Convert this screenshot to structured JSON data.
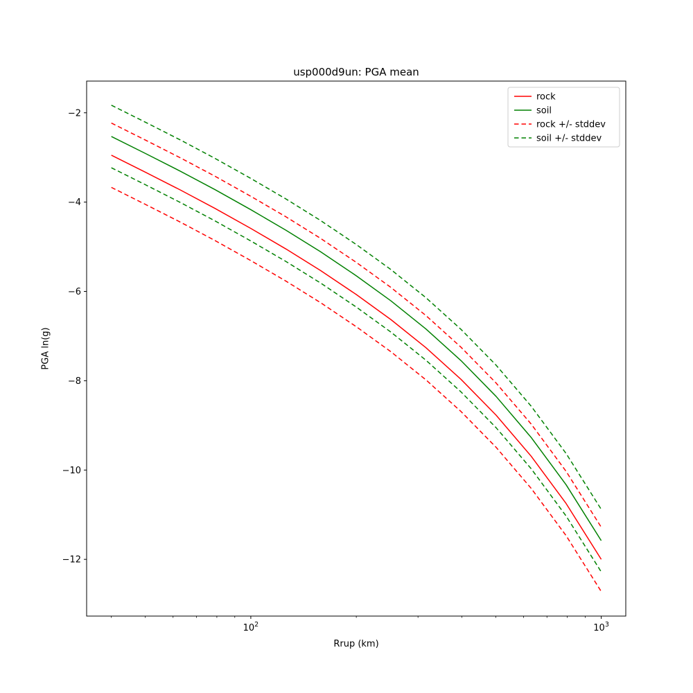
{
  "chart_data": {
    "type": "line",
    "title": "usp000d9un: PGA mean",
    "xlabel": "Rrup (km)",
    "ylabel": "PGA ln(g)",
    "x_scale": "log",
    "grid": false,
    "legend_position": "upper right",
    "xlim": [
      34,
      1175
    ],
    "ylim": [
      -13.27,
      -1.29
    ],
    "y_ticks": [
      -2,
      -4,
      -6,
      -8,
      -10,
      -12
    ],
    "y_tick_labels": [
      "−2",
      "−4",
      "−6",
      "−8",
      "−10",
      "−12"
    ],
    "x_ticks_major": [
      {
        "value": 100,
        "base": "10",
        "exp": "2"
      },
      {
        "value": 1000,
        "base": "10",
        "exp": "3"
      }
    ],
    "x_ticks_minor": [
      40,
      50,
      60,
      70,
      80,
      90,
      200,
      300,
      400,
      500,
      600,
      700,
      800,
      900
    ],
    "x": [
      40,
      50,
      63,
      79,
      100,
      126,
      158,
      200,
      251,
      316,
      398,
      501,
      631,
      794,
      1000
    ],
    "series": [
      {
        "name": "rock",
        "color": "#ff0000",
        "style": "solid",
        "values": [
          -2.95,
          -3.33,
          -3.73,
          -4.14,
          -4.59,
          -5.05,
          -5.53,
          -6.07,
          -6.63,
          -7.26,
          -7.97,
          -8.77,
          -9.69,
          -10.75,
          -12.0
        ]
      },
      {
        "name": "soil",
        "color": "#008000",
        "style": "solid",
        "values": [
          -2.53,
          -2.91,
          -3.31,
          -3.72,
          -4.17,
          -4.63,
          -5.11,
          -5.65,
          -6.21,
          -6.84,
          -7.55,
          -8.35,
          -9.27,
          -10.33,
          -11.58
        ]
      },
      {
        "name": "rock +stddev",
        "color": "#ff0000",
        "style": "dashed",
        "values": [
          -2.23,
          -2.61,
          -3.01,
          -3.42,
          -3.87,
          -4.33,
          -4.81,
          -5.35,
          -5.91,
          -6.54,
          -7.25,
          -8.05,
          -8.97,
          -10.03,
          -11.28
        ]
      },
      {
        "name": "rock -stddev",
        "color": "#ff0000",
        "style": "dashed",
        "values": [
          -3.67,
          -4.05,
          -4.45,
          -4.86,
          -5.31,
          -5.77,
          -6.25,
          -6.79,
          -7.35,
          -7.98,
          -8.69,
          -9.49,
          -10.41,
          -11.47,
          -12.72
        ]
      },
      {
        "name": "soil +stddev",
        "color": "#008000",
        "style": "dashed",
        "values": [
          -1.83,
          -2.21,
          -2.61,
          -3.02,
          -3.47,
          -3.93,
          -4.41,
          -4.95,
          -5.51,
          -6.14,
          -6.85,
          -7.65,
          -8.57,
          -9.63,
          -10.88
        ]
      },
      {
        "name": "soil -stddev",
        "color": "#008000",
        "style": "dashed",
        "values": [
          -3.23,
          -3.61,
          -4.01,
          -4.42,
          -4.87,
          -5.33,
          -5.81,
          -6.35,
          -6.91,
          -7.54,
          -8.25,
          -9.05,
          -9.97,
          -11.03,
          -12.28
        ]
      }
    ],
    "legend": [
      {
        "label": "rock",
        "color": "#ff0000",
        "style": "solid"
      },
      {
        "label": "soil",
        "color": "#008000",
        "style": "solid"
      },
      {
        "label": "rock +/- stddev",
        "color": "#ff0000",
        "style": "dashed"
      },
      {
        "label": "soil +/- stddev",
        "color": "#008000",
        "style": "dashed"
      }
    ]
  }
}
